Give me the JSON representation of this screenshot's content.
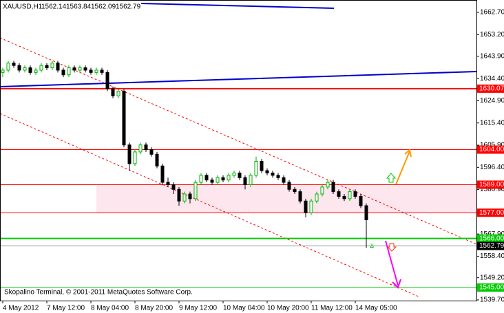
{
  "chart_data": {
    "type": "candlestick",
    "symbol": "XAUUSD,H1",
    "footer": "Skopalino Terminal, © 2001-2011 MetaQuotes Software Corp.",
    "up_color": "#00b000",
    "down_color": "#000000",
    "ylim": [
      1539.4,
      1668.0
    ],
    "yticks": [
      {
        "value": 1662.7,
        "label": "1662.70"
      },
      {
        "value": 1653.2,
        "label": "1653.20"
      },
      {
        "value": 1643.9,
        "label": "1643.90"
      },
      {
        "value": 1634.4,
        "label": "1634.40"
      },
      {
        "value": 1624.9,
        "label": "1624.90"
      },
      {
        "value": 1615.4,
        "label": "1615.40"
      },
      {
        "value": 1605.9,
        "label": "1605.90"
      },
      {
        "value": 1596.4,
        "label": "1596.40"
      },
      {
        "value": 1586.9,
        "label": "1586.90"
      },
      {
        "value": 1577.4,
        "label": "1577.40"
      },
      {
        "value": 1567.9,
        "label": "1567.90"
      },
      {
        "value": 1558.4,
        "label": "1558.40"
      },
      {
        "value": 1549.2,
        "label": "1549.20"
      },
      {
        "value": 1539.7,
        "label": "1539.70"
      }
    ],
    "x_labels": [
      "4 May 2012",
      "7 May 12:00",
      "8 May 04:00",
      "8 May 20:00",
      "9 May 12:00",
      "10 May 04:00",
      "10 May 20:00",
      "11 May 12:00",
      "14 May 05:00"
    ],
    "zone": [
      1577,
      1589
    ],
    "levels": [
      {
        "value": 1630.07,
        "label": "1630.07",
        "color": "#ff0000",
        "width": 2
      },
      {
        "value": 1604,
        "label": "1604.00",
        "color": "#ff0000",
        "width": 1
      },
      {
        "value": 1589,
        "label": "1589.00",
        "color": "#ff0000",
        "width": 1
      },
      {
        "value": 1577,
        "label": "1577.00",
        "color": "#ff0000",
        "width": 1
      },
      {
        "value": 1566,
        "label": "1566.00",
        "color": "#00cc00",
        "width": 2
      },
      {
        "value": 1545,
        "label": "1545.00",
        "color": "#00cc00",
        "width": 1
      }
    ],
    "ohlc": [
      [
        1637,
        1639,
        1635,
        1638
      ],
      [
        1638,
        1642,
        1637,
        1641
      ],
      [
        1641,
        1642,
        1639,
        1640
      ],
      [
        1640,
        1641,
        1637,
        1638
      ],
      [
        1638,
        1640,
        1637,
        1639
      ],
      [
        1639,
        1640,
        1636,
        1637
      ],
      [
        1637,
        1639,
        1636,
        1638
      ],
      [
        1638,
        1641,
        1637,
        1640
      ],
      [
        1640,
        1641,
        1638,
        1639
      ],
      [
        1639,
        1642,
        1638,
        1641
      ],
      [
        1641,
        1642,
        1637,
        1638
      ],
      [
        1638,
        1639,
        1635,
        1636
      ],
      [
        1636,
        1640,
        1635,
        1639
      ],
      [
        1639,
        1640,
        1637,
        1638
      ],
      [
        1638,
        1640,
        1637,
        1639
      ],
      [
        1639,
        1640,
        1637,
        1638
      ],
      [
        1638,
        1639,
        1636,
        1637
      ],
      [
        1637,
        1639,
        1636,
        1638
      ],
      [
        1638,
        1639,
        1636,
        1637
      ],
      [
        1637,
        1638,
        1629,
        1630
      ],
      [
        1630,
        1631,
        1626,
        1627
      ],
      [
        1627,
        1630,
        1626,
        1629
      ],
      [
        1629,
        1630,
        1605,
        1606
      ],
      [
        1606,
        1607,
        1595,
        1598
      ],
      [
        1598,
        1604,
        1597,
        1603
      ],
      [
        1603,
        1607,
        1602,
        1606
      ],
      [
        1606,
        1607,
        1603,
        1604
      ],
      [
        1604,
        1605,
        1601,
        1602
      ],
      [
        1602,
        1603,
        1596,
        1597
      ],
      [
        1597,
        1598,
        1589,
        1590
      ],
      [
        1590,
        1592,
        1588,
        1589
      ],
      [
        1589,
        1590,
        1585,
        1587
      ],
      [
        1587,
        1588,
        1580,
        1582
      ],
      [
        1582,
        1586,
        1581,
        1585
      ],
      [
        1585,
        1586,
        1581,
        1583
      ],
      [
        1583,
        1591,
        1582,
        1590
      ],
      [
        1590,
        1594,
        1589,
        1593
      ],
      [
        1593,
        1594,
        1590,
        1591
      ],
      [
        1591,
        1592,
        1589,
        1590
      ],
      [
        1590,
        1593,
        1589,
        1592
      ],
      [
        1592,
        1593,
        1590,
        1591
      ],
      [
        1591,
        1594,
        1590,
        1593
      ],
      [
        1593,
        1595,
        1592,
        1594
      ],
      [
        1594,
        1595,
        1591,
        1592
      ],
      [
        1592,
        1593,
        1587,
        1589
      ],
      [
        1589,
        1594,
        1588,
        1593
      ],
      [
        1593,
        1601,
        1592,
        1599
      ],
      [
        1599,
        1600,
        1594,
        1595
      ],
      [
        1595,
        1596,
        1593,
        1594
      ],
      [
        1594,
        1595,
        1592,
        1593
      ],
      [
        1593,
        1594,
        1591,
        1592
      ],
      [
        1592,
        1593,
        1589,
        1590
      ],
      [
        1590,
        1591,
        1586,
        1587
      ],
      [
        1587,
        1588,
        1585,
        1586
      ],
      [
        1586,
        1587,
        1581,
        1582
      ],
      [
        1582,
        1583,
        1575,
        1577
      ],
      [
        1577,
        1583,
        1576,
        1582
      ],
      [
        1582,
        1586,
        1581,
        1585
      ],
      [
        1585,
        1589,
        1584,
        1588
      ],
      [
        1588,
        1591,
        1587,
        1590
      ],
      [
        1590,
        1591,
        1585,
        1586
      ],
      [
        1586,
        1587,
        1583,
        1584
      ],
      [
        1584,
        1585,
        1582,
        1583
      ],
      [
        1583,
        1587,
        1582,
        1586
      ],
      [
        1586,
        1587,
        1583,
        1584
      ],
      [
        1584,
        1585,
        1579,
        1580
      ],
      [
        1580,
        1581,
        1562,
        1574
      ],
      [
        1562.14,
        1563.84,
        1562.09,
        1562.79
      ]
    ]
  }
}
